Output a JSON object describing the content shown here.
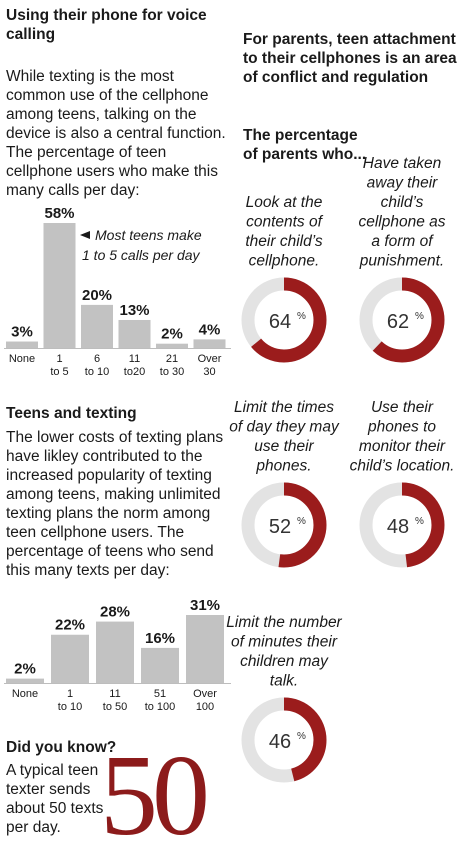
{
  "left": {
    "calls": {
      "title": "Using their phone for voice calling",
      "intro": "While texting is the most common use of the cellphone among teens, talking on the device is also a central function. The percentage of teen cellphone users who make this many calls per day:",
      "annotation": "Most teens make 1 to 5 calls per day"
    },
    "texting": {
      "title": "Teens and texting",
      "intro": "The lower costs of texting plans have likley contributed to the increased popularity of texting among teens, making unlimited texting plans the norm among teen cellphone users. The percentage of teens who send this many texts per day:"
    },
    "didyouknow": {
      "title": "Did you know?",
      "text": "A typical teen texter sends about 50 texts per day.",
      "big_number": "50"
    }
  },
  "right": {
    "title": "For parents, teen attachment to their cellphones is an area of conflict and regulation",
    "subtitle": "The percentage of parents who..."
  },
  "colors": {
    "bar": "#c2c2c2",
    "accent": "#9b1c1c",
    "ring_bg": "#e3e3e3",
    "axis": "#bdbdbd"
  },
  "chart_data": [
    {
      "type": "bar",
      "categories": [
        "None",
        "1 to 5",
        "6 to 10",
        "11 to20",
        "21 to 30",
        "Over 30"
      ],
      "tick_lines": [
        [
          "None"
        ],
        [
          "1",
          "to 5"
        ],
        [
          "6",
          "to 10"
        ],
        [
          "11",
          "to20"
        ],
        [
          "21",
          "to 30"
        ],
        [
          "Over",
          "30"
        ]
      ],
      "values": [
        3,
        58,
        20,
        13,
        2,
        4
      ],
      "value_labels": [
        "3%",
        "58%",
        "20%",
        "13%",
        "2%",
        "4%"
      ],
      "ylim": [
        0,
        58
      ]
    },
    {
      "type": "bar",
      "categories": [
        "None",
        "1 to 10",
        "11 to 50",
        "51 to 100",
        "Over 100"
      ],
      "tick_lines": [
        [
          "None"
        ],
        [
          "1",
          "to 10"
        ],
        [
          "11",
          "to 50"
        ],
        [
          "51",
          "to 100"
        ],
        [
          "Over",
          "100"
        ]
      ],
      "values": [
        2,
        22,
        28,
        16,
        31
      ],
      "value_labels": [
        "2%",
        "22%",
        "28%",
        "16%",
        "31%"
      ],
      "ylim": [
        0,
        31
      ]
    },
    {
      "type": "pie",
      "style": "donut",
      "items": [
        {
          "label_lines": [
            "Look at the",
            "contents of",
            "their child’s",
            "cellphone."
          ],
          "value": 64
        },
        {
          "label_lines": [
            "Have taken",
            "away their",
            "child’s",
            "cellphone as",
            "a form of",
            "punishment."
          ],
          "value": 62
        },
        {
          "label_lines": [
            "Limit the times",
            "of day they may",
            "use their",
            "phones."
          ],
          "value": 52
        },
        {
          "label_lines": [
            "Use their",
            "phones to",
            "monitor their",
            "child’s location."
          ],
          "value": 48
        },
        {
          "label_lines": [
            "Limit the number",
            "of minutes their",
            "children may",
            "talk."
          ],
          "value": 46
        }
      ]
    }
  ]
}
